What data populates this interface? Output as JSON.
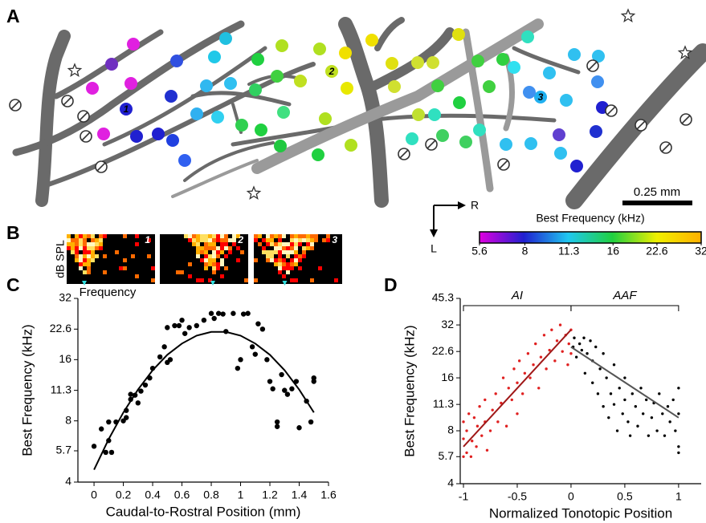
{
  "panel_labels": [
    "A",
    "B",
    "C",
    "D"
  ],
  "panel_a": {
    "site_labels": [
      "1",
      "2",
      "3"
    ],
    "scale_bar": "0.25 mm",
    "orientation": {
      "rostral": "R",
      "lateral": "L"
    }
  },
  "panel_b": {
    "y_label": "dB SPL",
    "x_label": "Frequency",
    "site_labels": [
      "1",
      "2",
      "3"
    ]
  },
  "chart_data": [
    {
      "type": "colorbar",
      "title": "Best Frequency (kHz)",
      "log_scale": true,
      "xlim": [
        5.6,
        32
      ],
      "xticks": [
        5.6,
        8,
        11.3,
        16,
        22.6,
        32
      ],
      "colors": [
        "#e000e0",
        "#2020d0",
        "#20c8f0",
        "#20d040",
        "#f0f000",
        "#ffb000"
      ]
    },
    {
      "type": "scatter",
      "x_label": "Caudal-to-Rostral Position (mm)",
      "y_label": "Best Frequency (kHz)",
      "log_y": true,
      "xlim": [
        -0.11,
        1.6
      ],
      "ylim": [
        4,
        32
      ],
      "xticks": [
        0,
        0.2,
        0.4,
        0.6,
        0.8,
        1,
        1.2,
        1.4,
        1.6
      ],
      "yticks": [
        4,
        5.7,
        8,
        11.3,
        16,
        22.6,
        32
      ],
      "series": [
        {
          "color": "#000000",
          "x": [
            0,
            0.05,
            0.08,
            0.1,
            0.12,
            0.1,
            0.15,
            0.2,
            0.22,
            0.22,
            0.25,
            0.25,
            0.28,
            0.3,
            0.32,
            0.35,
            0.38,
            0.4,
            0.45,
            0.48,
            0.5,
            0.52,
            0.5,
            0.55,
            0.58,
            0.6,
            0.62,
            0.65,
            0.7,
            0.75,
            0.8,
            0.82,
            0.85,
            0.88,
            0.9,
            0.95,
            0.98,
            1.0,
            1.02,
            1.05,
            1.08,
            1.1,
            1.12,
            1.15,
            1.18,
            1.2,
            1.22,
            1.25,
            1.25,
            1.28,
            1.3,
            1.32,
            1.35,
            1.38,
            1.4,
            1.45,
            1.48,
            1.5,
            1.5
          ],
          "values": [
            6.0,
            7.3,
            5.6,
            6.4,
            5.6,
            7.9,
            7.9,
            8.0,
            8.3,
            9.0,
            10.2,
            10.8,
            10.7,
            9.8,
            11.2,
            12.0,
            13.0,
            14.5,
            16.5,
            18.5,
            15.5,
            16.0,
            23.0,
            23.5,
            23.5,
            25.0,
            21.5,
            23.0,
            23.5,
            25.0,
            27.0,
            25.5,
            27.0,
            26.8,
            22.0,
            27.0,
            14.5,
            16.0,
            26.8,
            27.0,
            18.5,
            17.0,
            24.0,
            22.6,
            16.0,
            12.5,
            11.5,
            7.5,
            7.9,
            13.5,
            11.3,
            10.8,
            11.5,
            12.5,
            7.4,
            10.0,
            7.9,
            12.5,
            13.0
          ]
        }
      ],
      "fits": [
        {
          "color": "#000000",
          "x": [
            0,
            0.1,
            0.2,
            0.3,
            0.4,
            0.5,
            0.6,
            0.7,
            0.8,
            0.9,
            1.0,
            1.1,
            1.2,
            1.3,
            1.4,
            1.5
          ],
          "values": [
            4.6,
            6.5,
            8.8,
            11.4,
            14.2,
            16.9,
            19.2,
            21.0,
            21.9,
            21.9,
            21.0,
            19.2,
            16.9,
            14.2,
            11.4,
            8.8
          ]
        }
      ]
    },
    {
      "type": "scatter",
      "x_label": "Normalized Tonotopic Position",
      "y_label": "Best Frequency (kHz)",
      "log_y": true,
      "xlim": [
        -1.03,
        1.21
      ],
      "ylim": [
        4,
        45.3
      ],
      "xticks": [
        -1,
        -0.5,
        0,
        0.5,
        1
      ],
      "yticks": [
        4,
        5.7,
        8,
        11.3,
        16,
        22.6,
        32,
        45.3
      ],
      "regions": [
        {
          "label": "AI",
          "span": [
            -1,
            0
          ]
        },
        {
          "label": "AAF",
          "span": [
            0,
            1
          ]
        }
      ],
      "series": [
        {
          "color": "#e02020",
          "x": [
            -1,
            -1,
            -1,
            -0.97,
            -0.97,
            -0.95,
            -0.93,
            -0.92,
            -0.9,
            -0.88,
            -0.87,
            -0.85,
            -0.83,
            -0.8,
            -0.8,
            -0.78,
            -0.75,
            -0.73,
            -0.7,
            -0.68,
            -0.65,
            -0.63,
            -0.6,
            -0.58,
            -0.55,
            -0.53,
            -0.5,
            -0.5,
            -0.48,
            -0.45,
            -0.43,
            -0.4,
            -0.38,
            -0.35,
            -0.33,
            -0.3,
            -0.28,
            -0.25,
            -0.23,
            -0.2,
            -0.18,
            -0.15,
            -0.13,
            -0.1,
            -0.08,
            -0.05,
            -0.03,
            -0.02,
            0,
            0
          ],
          "values": [
            5.7,
            7.2,
            9.0,
            6.0,
            8.0,
            10.0,
            5.7,
            7.0,
            9.5,
            6.5,
            8.5,
            11.0,
            7.5,
            9.0,
            12.0,
            6.2,
            8.0,
            10.5,
            13.0,
            9.0,
            11.5,
            16.0,
            8.5,
            14.0,
            12.0,
            18.0,
            10.0,
            15.0,
            20.0,
            13.0,
            17.0,
            22.0,
            16.0,
            19.0,
            25.0,
            14.0,
            21.0,
            28.0,
            18.0,
            23.0,
            30.0,
            20.0,
            26.0,
            32.0,
            22.6,
            28.0,
            19.0,
            25.0,
            30.0,
            22.0
          ]
        },
        {
          "color": "#000000",
          "x": [
            0.02,
            0.03,
            0.05,
            0.08,
            0.1,
            0.12,
            0.13,
            0.15,
            0.18,
            0.2,
            0.2,
            0.23,
            0.25,
            0.27,
            0.3,
            0.3,
            0.33,
            0.35,
            0.37,
            0.4,
            0.4,
            0.43,
            0.45,
            0.48,
            0.5,
            0.5,
            0.53,
            0.55,
            0.57,
            0.6,
            0.62,
            0.65,
            0.67,
            0.7,
            0.72,
            0.75,
            0.77,
            0.8,
            0.82,
            0.85,
            0.87,
            0.9,
            0.92,
            0.95,
            0.97,
            1,
            1,
            1,
            1
          ],
          "values": [
            24,
            27,
            21,
            25,
            23,
            27,
            17,
            22,
            26,
            15,
            20,
            24,
            13,
            18,
            22,
            11,
            16,
            9.5,
            13,
            19,
            11.3,
            8,
            14,
            10,
            16,
            12,
            9,
            7.5,
            13,
            11,
            8.5,
            14,
            10,
            12,
            7.5,
            9.5,
            11.5,
            8,
            13,
            10,
            7.5,
            11,
            9,
            12,
            8,
            6,
            10,
            14,
            6.5
          ]
        }
      ],
      "fits": [
        {
          "color": "#a01818",
          "x": [
            -1,
            0
          ],
          "values": [
            6.5,
            30
          ]
        },
        {
          "color": "#555555",
          "x": [
            0,
            1
          ],
          "values": [
            24,
            9.5
          ]
        }
      ]
    }
  ]
}
